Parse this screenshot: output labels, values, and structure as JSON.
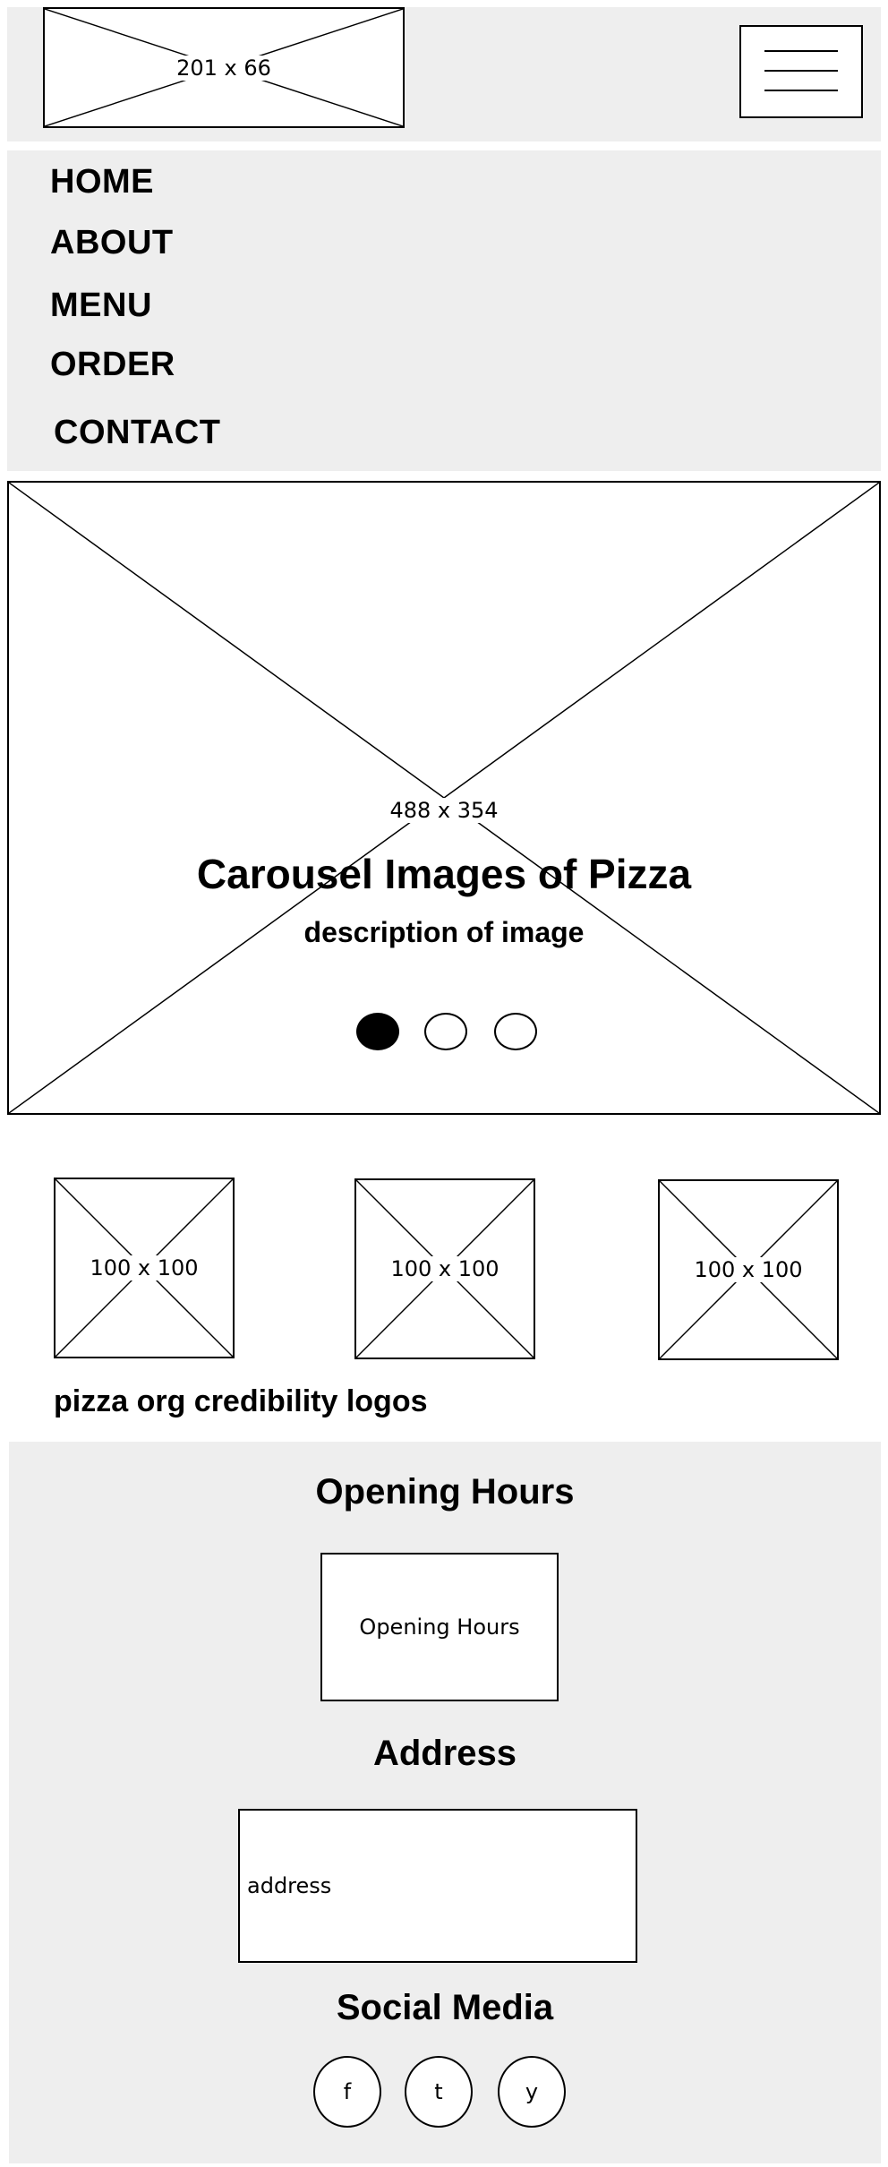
{
  "header": {
    "logo_placeholder": "201 x 66",
    "menu_icon": "hamburger-icon"
  },
  "nav": {
    "items": [
      {
        "label": "HOME"
      },
      {
        "label": "ABOUT"
      },
      {
        "label": "MENU"
      },
      {
        "label": "ORDER"
      },
      {
        "label": "CONTACT"
      }
    ]
  },
  "carousel": {
    "image_placeholder": "488 x 354",
    "title": "Carousel Images of Pizza",
    "description": "description of image",
    "active_slide": 1,
    "slide_count": 3
  },
  "credibility": {
    "logos": [
      {
        "placeholder": "100 x 100"
      },
      {
        "placeholder": "100 x 100"
      },
      {
        "placeholder": "100 x 100"
      }
    ],
    "caption": "pizza org credibility logos"
  },
  "footer": {
    "opening_hours": {
      "heading": "Opening Hours",
      "box_text": "Opening Hours"
    },
    "address": {
      "heading": "Address",
      "box_text": "address"
    },
    "social": {
      "heading": "Social Media",
      "items": [
        {
          "label": "f",
          "icon": "facebook-icon"
        },
        {
          "label": "t",
          "icon": "twitter-icon"
        },
        {
          "label": "y",
          "icon": "youtube-icon"
        }
      ]
    }
  }
}
